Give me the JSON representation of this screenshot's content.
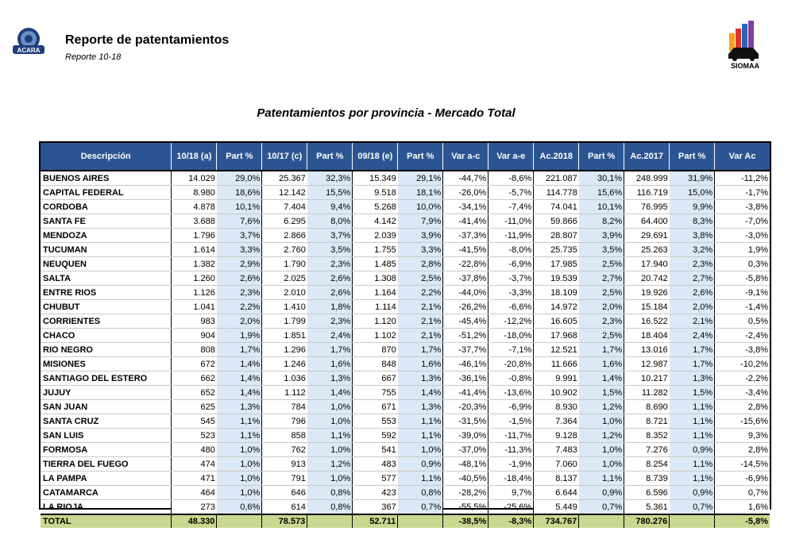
{
  "header": {
    "title": "Reporte de patentamientos",
    "subtitle": "Reporte 10-18",
    "left_logo_text": "ACARA",
    "right_logo_text": "SIOMAA"
  },
  "table": {
    "title": "Patentamientos por provincia - Mercado Total",
    "columns": [
      "Descripción",
      "10/18 (a)",
      "Part %",
      "10/17 (c)",
      "Part %",
      "09/18 (e)",
      "Part %",
      "Var a-c",
      "Var a-e",
      "Ac.2018",
      "Part %",
      "Ac.2017",
      "Part %",
      "Var Ac"
    ],
    "rows": [
      [
        "BUENOS AIRES",
        "14.029",
        "29,0%",
        "25.367",
        "32,3%",
        "15.349",
        "29,1%",
        "-44,7%",
        "-8,6%",
        "221.087",
        "30,1%",
        "248.999",
        "31,9%",
        "-11,2%"
      ],
      [
        "CAPITAL FEDERAL",
        "8.980",
        "18,6%",
        "12.142",
        "15,5%",
        "9.518",
        "18,1%",
        "-26,0%",
        "-5,7%",
        "114.778",
        "15,6%",
        "116.719",
        "15,0%",
        "-1,7%"
      ],
      [
        "CORDOBA",
        "4.878",
        "10,1%",
        "7.404",
        "9,4%",
        "5.268",
        "10,0%",
        "-34,1%",
        "-7,4%",
        "74.041",
        "10,1%",
        "76.995",
        "9,9%",
        "-3,8%"
      ],
      [
        "SANTA FE",
        "3.688",
        "7,6%",
        "6.295",
        "8,0%",
        "4.142",
        "7,9%",
        "-41,4%",
        "-11,0%",
        "59.866",
        "8,2%",
        "64.400",
        "8,3%",
        "-7,0%"
      ],
      [
        "MENDOZA",
        "1.796",
        "3,7%",
        "2.866",
        "3,7%",
        "2.039",
        "3,9%",
        "-37,3%",
        "-11,9%",
        "28.807",
        "3,9%",
        "29.691",
        "3,8%",
        "-3,0%"
      ],
      [
        "TUCUMAN",
        "1.614",
        "3,3%",
        "2.760",
        "3,5%",
        "1.755",
        "3,3%",
        "-41,5%",
        "-8,0%",
        "25.735",
        "3,5%",
        "25.263",
        "3,2%",
        "1,9%"
      ],
      [
        "NEUQUEN",
        "1.382",
        "2,9%",
        "1.790",
        "2,3%",
        "1.485",
        "2,8%",
        "-22,8%",
        "-6,9%",
        "17.985",
        "2,5%",
        "17.940",
        "2,3%",
        "0,3%"
      ],
      [
        "SALTA",
        "1.260",
        "2,6%",
        "2.025",
        "2,6%",
        "1.308",
        "2,5%",
        "-37,8%",
        "-3,7%",
        "19.539",
        "2,7%",
        "20.742",
        "2,7%",
        "-5,8%"
      ],
      [
        "ENTRE RIOS",
        "1.126",
        "2,3%",
        "2.010",
        "2,6%",
        "1.164",
        "2,2%",
        "-44,0%",
        "-3,3%",
        "18.109",
        "2,5%",
        "19.926",
        "2,6%",
        "-9,1%"
      ],
      [
        "CHUBUT",
        "1.041",
        "2,2%",
        "1.410",
        "1,8%",
        "1.114",
        "2,1%",
        "-26,2%",
        "-6,6%",
        "14.972",
        "2,0%",
        "15.184",
        "2,0%",
        "-1,4%"
      ],
      [
        "CORRIENTES",
        "983",
        "2,0%",
        "1.799",
        "2,3%",
        "1.120",
        "2,1%",
        "-45,4%",
        "-12,2%",
        "16.605",
        "2,3%",
        "16.522",
        "2,1%",
        "0,5%"
      ],
      [
        "CHACO",
        "904",
        "1,9%",
        "1.851",
        "2,4%",
        "1.102",
        "2,1%",
        "-51,2%",
        "-18,0%",
        "17.968",
        "2,5%",
        "18.404",
        "2,4%",
        "-2,4%"
      ],
      [
        "RIO NEGRO",
        "808",
        "1,7%",
        "1.296",
        "1,7%",
        "870",
        "1,7%",
        "-37,7%",
        "-7,1%",
        "12.521",
        "1,7%",
        "13.016",
        "1,7%",
        "-3,8%"
      ],
      [
        "MISIONES",
        "672",
        "1,4%",
        "1.246",
        "1,6%",
        "848",
        "1,6%",
        "-46,1%",
        "-20,8%",
        "11.666",
        "1,6%",
        "12.987",
        "1,7%",
        "-10,2%"
      ],
      [
        "SANTIAGO DEL ESTERO",
        "662",
        "1,4%",
        "1.036",
        "1,3%",
        "667",
        "1,3%",
        "-36,1%",
        "-0,8%",
        "9.991",
        "1,4%",
        "10.217",
        "1,3%",
        "-2,2%"
      ],
      [
        "JUJUY",
        "652",
        "1,4%",
        "1.112",
        "1,4%",
        "755",
        "1,4%",
        "-41,4%",
        "-13,6%",
        "10.902",
        "1,5%",
        "11.282",
        "1,5%",
        "-3,4%"
      ],
      [
        "SAN JUAN",
        "625",
        "1,3%",
        "784",
        "1,0%",
        "671",
        "1,3%",
        "-20,3%",
        "-6,9%",
        "8.930",
        "1,2%",
        "8.690",
        "1,1%",
        "2,8%"
      ],
      [
        "SANTA CRUZ",
        "545",
        "1,1%",
        "796",
        "1,0%",
        "553",
        "1,1%",
        "-31,5%",
        "-1,5%",
        "7.364",
        "1,0%",
        "8.721",
        "1,1%",
        "-15,6%"
      ],
      [
        "SAN LUIS",
        "523",
        "1,1%",
        "858",
        "1,1%",
        "592",
        "1,1%",
        "-39,0%",
        "-11,7%",
        "9.128",
        "1,2%",
        "8.352",
        "1,1%",
        "9,3%"
      ],
      [
        "FORMOSA",
        "480",
        "1,0%",
        "762",
        "1,0%",
        "541",
        "1,0%",
        "-37,0%",
        "-11,3%",
        "7.483",
        "1,0%",
        "7.276",
        "0,9%",
        "2,8%"
      ],
      [
        "TIERRA DEL FUEGO",
        "474",
        "1,0%",
        "913",
        "1,2%",
        "483",
        "0,9%",
        "-48,1%",
        "-1,9%",
        "7.060",
        "1,0%",
        "8.254",
        "1,1%",
        "-14,5%"
      ],
      [
        "LA PAMPA",
        "471",
        "1,0%",
        "791",
        "1,0%",
        "577",
        "1,1%",
        "-40,5%",
        "-18,4%",
        "8.137",
        "1,1%",
        "8.739",
        "1,1%",
        "-6,9%"
      ],
      [
        "CATAMARCA",
        "464",
        "1,0%",
        "646",
        "0,8%",
        "423",
        "0,8%",
        "-28,2%",
        "9,7%",
        "6.644",
        "0,9%",
        "6.596",
        "0,9%",
        "0,7%"
      ],
      [
        "LA RIOJA",
        "273",
        "0,6%",
        "614",
        "0,8%",
        "367",
        "0,7%",
        "-55,5%",
        "-25,6%",
        "5.449",
        "0,7%",
        "5.361",
        "0,7%",
        "1,6%"
      ]
    ],
    "total": [
      "TOTAL",
      "48.330",
      "",
      "78.573",
      "",
      "52.711",
      "",
      "-38,5%",
      "-8,3%",
      "734.767",
      "",
      "780.276",
      "",
      "-5,8%"
    ]
  },
  "colors": {
    "header_bg": "#2b5592",
    "part_bg": "#dbe9f6",
    "total_bg": "#c9d88f"
  }
}
